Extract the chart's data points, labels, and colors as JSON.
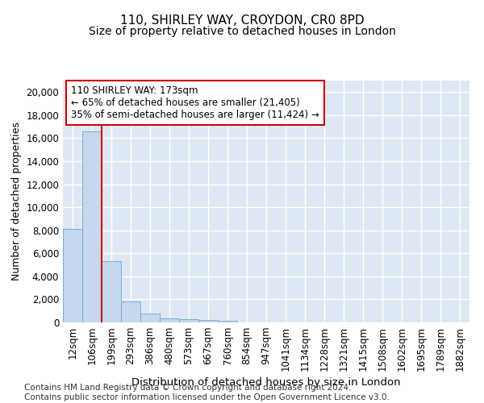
{
  "title1": "110, SHIRLEY WAY, CROYDON, CR0 8PD",
  "title2": "Size of property relative to detached houses in London",
  "xlabel": "Distribution of detached houses by size in London",
  "ylabel": "Number of detached properties",
  "bar_labels": [
    "12sqm",
    "106sqm",
    "199sqm",
    "293sqm",
    "386sqm",
    "480sqm",
    "573sqm",
    "667sqm",
    "760sqm",
    "854sqm",
    "947sqm",
    "1041sqm",
    "1134sqm",
    "1228sqm",
    "1321sqm",
    "1415sqm",
    "1508sqm",
    "1602sqm",
    "1695sqm",
    "1789sqm",
    "1882sqm"
  ],
  "bar_heights": [
    8100,
    16600,
    5300,
    1850,
    750,
    330,
    270,
    200,
    150,
    0,
    0,
    0,
    0,
    0,
    0,
    0,
    0,
    0,
    0,
    0,
    0
  ],
  "bar_color": "#c5d8ee",
  "bar_edge_color": "#7aadd4",
  "vline_x": 1.5,
  "vline_color": "#cc0000",
  "annotation_box_text": "110 SHIRLEY WAY: 173sqm\n← 65% of detached houses are smaller (21,405)\n35% of semi-detached houses are larger (11,424) →",
  "annotation_box_color": "#cc0000",
  "annotation_text_color": "#000000",
  "ylim": [
    0,
    21000
  ],
  "yticks": [
    0,
    2000,
    4000,
    6000,
    8000,
    10000,
    12000,
    14000,
    16000,
    18000,
    20000
  ],
  "background_color": "#dde8f4",
  "grid_color": "#ffffff",
  "footnote": "Contains HM Land Registry data © Crown copyright and database right 2024.\nContains public sector information licensed under the Open Government Licence v3.0.",
  "title1_fontsize": 11,
  "title2_fontsize": 10,
  "xlabel_fontsize": 9.5,
  "ylabel_fontsize": 9,
  "tick_fontsize": 8.5,
  "footnote_fontsize": 7.5
}
